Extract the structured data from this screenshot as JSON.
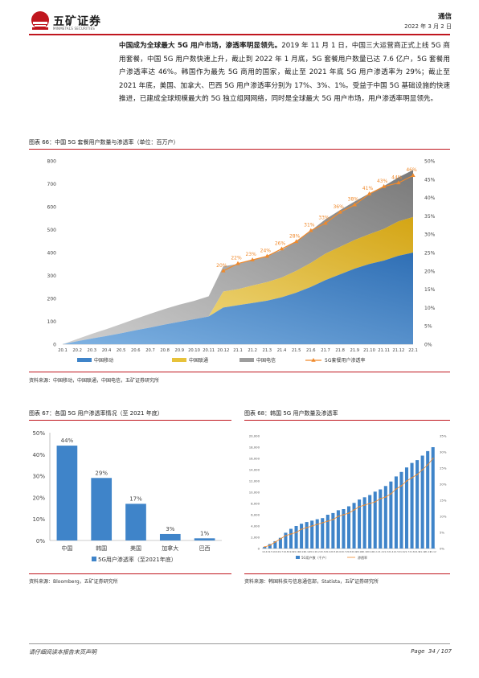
{
  "header": {
    "logo_text": "五矿证券",
    "logo_sub": "MINMETALS SECURITIES",
    "section": "通信",
    "date": "2022 年 3 月 2 日"
  },
  "paragraph": {
    "bold_lead": "中国成为全球最大 5G 用户市场，渗透率明显领先。",
    "body": "2019 年 11 月 1 日，中国三大运营商正式上线 5G 商用套餐，中国 5G 用户数快速上升，截止到 2022 年 1 月底，5G 套餐用户数量已达 7.6 亿户，5G 套餐用户渗透率达 46%。韩国作为最先 5G 商用的国家，截止至 2021 年底 5G 用户渗透率为 29%；截止至 2021 年底，美国、加拿大、巴西 5G 用户渗透率分别为 17%、3%、1%。受益于中国 5G 基础设施的快速推进，已建成全球规模最大的 5G 独立组网网络，同时是全球最大 5G 用户市场，用户渗透率明显领先。"
  },
  "fig66": {
    "title": "图表 66：中国 5G 套餐用户数量与渗透率（单位：百万户）",
    "source": "资料来源：中国移动，中国联通，中国电信，五矿证券研究所"
  },
  "fig67": {
    "title": "图表 67：各国 5G 用户渗透率情况（至 2021 年底）",
    "source": "资料来源：Bloomberg，五矿证券研究所"
  },
  "fig68": {
    "title": "图表 68：韩国 5G 用户数量及渗透率",
    "source": "资料来源：韩国科技与信息通信部，Statista，五矿证券研究所"
  },
  "footer": {
    "disclaimer": "请仔细阅读本报告末页声明",
    "page_label": "Page",
    "page_number": "34 / 107"
  },
  "chart_data": [
    {
      "type": "area",
      "id": "fig66",
      "categories": [
        "20.1",
        "20.2",
        "20.3",
        "20.4",
        "20.5",
        "20.6",
        "20.7",
        "20.8",
        "20.9",
        "20.10",
        "20.11",
        "20.12",
        "21.1",
        "21.2",
        "21.3",
        "21.4",
        "21.5",
        "21.6",
        "21.7",
        "21.8",
        "21.9",
        "21.10",
        "21.11",
        "21.12",
        "22.1"
      ],
      "series": [
        {
          "name": "中国移动",
          "kind": "area",
          "color": "#3f84c9",
          "values": [
            0,
            13,
            25,
            36,
            48,
            61,
            73,
            86,
            98,
            109,
            121,
            160,
            170,
            180,
            190,
            205,
            225,
            250,
            280,
            305,
            330,
            350,
            365,
            386,
            400
          ]
        },
        {
          "name": "中国联通",
          "kind": "area",
          "color": "#f2d55a",
          "values": [
            0,
            0,
            0,
            0,
            0,
            0,
            0,
            0,
            0,
            0,
            0,
            70,
            70,
            76,
            81,
            86,
            95,
            105,
            115,
            120,
            125,
            130,
            138,
            150,
            155
          ]
        },
        {
          "name": "中国电信",
          "kind": "area",
          "color": "#9d9d9d",
          "values": [
            0,
            10,
            20,
            30,
            40,
            50,
            60,
            68,
            75,
            80,
            88,
            110,
            110,
            112,
            115,
            120,
            130,
            140,
            150,
            160,
            168,
            178,
            187,
            192,
            205
          ]
        },
        {
          "name": "5G套餐用户渗透率",
          "kind": "line",
          "axis": "right",
          "color": "#f08a2c",
          "values": [
            null,
            null,
            null,
            null,
            null,
            null,
            null,
            null,
            null,
            null,
            null,
            20,
            22,
            23,
            24,
            26,
            28,
            31,
            33,
            36,
            38,
            41,
            43,
            44,
            46
          ],
          "labels": [
            "",
            "",
            "",
            "",
            "",
            "",
            "",
            "",
            "",
            "",
            "",
            "20%",
            "22%",
            "23%",
            "24%",
            "26%",
            "28%",
            "31%",
            "33%",
            "36%",
            "38%",
            "41%",
            "43%",
            "44%",
            "46%"
          ]
        }
      ],
      "ylim": [
        0,
        800
      ],
      "yticks": [
        "0",
        "100",
        "200",
        "300",
        "400",
        "500",
        "600",
        "700",
        "800"
      ],
      "y2lim": [
        0,
        50
      ],
      "y2ticks": [
        "0%",
        "5%",
        "10%",
        "15%",
        "20%",
        "25%",
        "30%",
        "35%",
        "40%",
        "45%",
        "50%"
      ],
      "legend": [
        "中国移动",
        "中国联通",
        "中国电信",
        "5G套餐用户渗透率"
      ],
      "legend_position": "bottom"
    },
    {
      "type": "bar",
      "id": "fig67",
      "categories": [
        "中国",
        "韩国",
        "美国",
        "加拿大",
        "巴西"
      ],
      "values": [
        44,
        29,
        17,
        3,
        1
      ],
      "labels": [
        "44%",
        "29%",
        "17%",
        "3%",
        "1%"
      ],
      "ylim": [
        0,
        50
      ],
      "yticks": [
        "0%",
        "10%",
        "20%",
        "30%",
        "40%",
        "50%"
      ],
      "legend": [
        "5G用户渗透率（至2021年底）"
      ],
      "legend_position": "bottom"
    },
    {
      "type": "bar",
      "id": "fig68",
      "categories": [
        "19.4",
        "19.5",
        "19.6",
        "19.7",
        "19.8",
        "19.9",
        "19.10",
        "19.11",
        "19.12",
        "20.1",
        "20.2",
        "20.3",
        "20.4",
        "20.5",
        "20.6",
        "20.7",
        "20.8",
        "20.9",
        "20.10",
        "20.11",
        "20.12",
        "21.1",
        "21.2",
        "21.3",
        "21.4",
        "21.5",
        "21.6",
        "21.7",
        "21.8",
        "21.9",
        "21.10",
        "21.11",
        "21.12"
      ],
      "series": [
        {
          "name": "5G用户数（千户）",
          "kind": "bar",
          "color": "#3f84c9",
          "values": [
            300,
            800,
            1300,
            1900,
            2800,
            3500,
            4000,
            4400,
            4700,
            4950,
            5200,
            5400,
            6000,
            6300,
            6800,
            7000,
            7500,
            8100,
            8700,
            9100,
            9500,
            10100,
            10500,
            11100,
            11900,
            12800,
            13600,
            14400,
            15200,
            15700,
            16500,
            17300,
            18000
          ]
        },
        {
          "name": "渗透率",
          "kind": "line",
          "axis": "right",
          "color": "#f08a2c",
          "values": [
            0.5,
            1,
            2,
            3,
            4,
            4.5,
            5,
            6,
            6.5,
            7,
            7.5,
            8,
            8.5,
            9,
            10,
            10.5,
            11,
            12,
            13,
            13.5,
            14,
            14.5,
            15.5,
            16,
            17,
            18.5,
            19.5,
            21,
            22,
            23,
            24.5,
            26,
            28
          ]
        }
      ],
      "ylim": [
        0,
        20000
      ],
      "yticks": [
        "0",
        "2,000",
        "4,000",
        "6,000",
        "8,000",
        "10,000",
        "12,000",
        "14,000",
        "16,000",
        "18,000",
        "20,000"
      ],
      "y2lim": [
        0,
        35
      ],
      "y2ticks": [
        "0%",
        "5%",
        "10%",
        "15%",
        "20%",
        "25%",
        "30%",
        "35%"
      ],
      "legend": [
        "5G用户数（千户）",
        "渗透率"
      ],
      "legend_position": "bottom"
    }
  ]
}
